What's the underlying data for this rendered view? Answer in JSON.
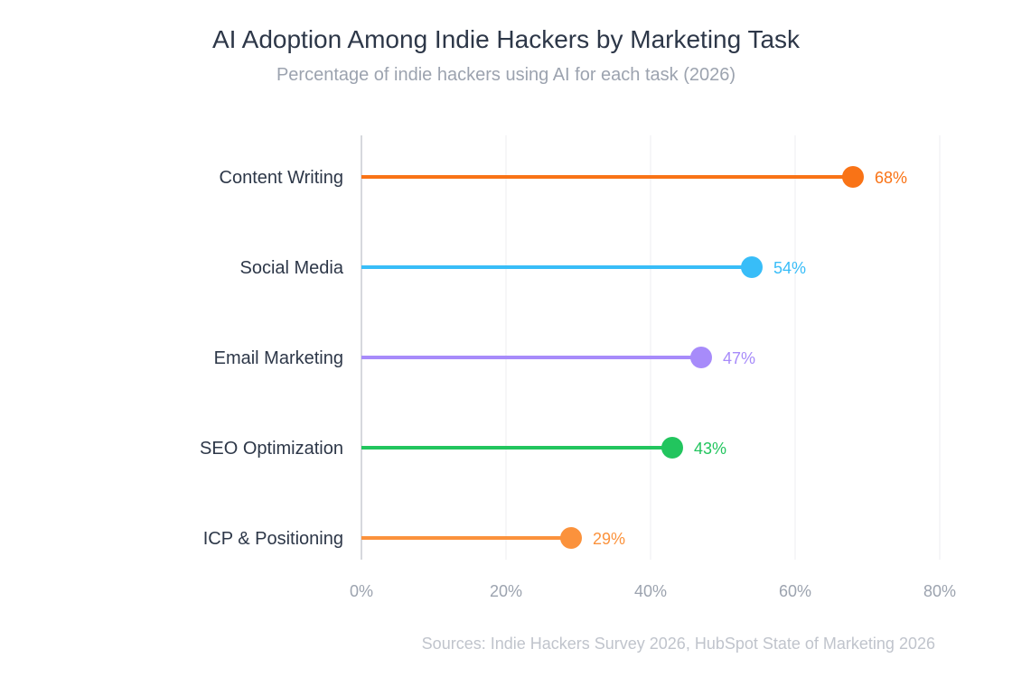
{
  "chart_data": {
    "type": "bar",
    "subtype": "lollipop",
    "orientation": "horizontal",
    "title": "AI Adoption Among Indie Hackers by Marketing Task",
    "subtitle": "Percentage of indie hackers using AI for each task (2026)",
    "categories": [
      "Content Writing",
      "Social Media",
      "Email Marketing",
      "SEO Optimization",
      "ICP & Positioning"
    ],
    "values": [
      68,
      54,
      47,
      43,
      29
    ],
    "value_labels": [
      "68%",
      "54%",
      "47%",
      "43%",
      "29%"
    ],
    "colors": [
      "#f97316",
      "#38bdf8",
      "#a78bfa",
      "#22c55e",
      "#fb923c"
    ],
    "xlim": [
      0,
      80
    ],
    "x_ticks": [
      0,
      20,
      40,
      60,
      80
    ],
    "x_tick_labels": [
      "0%",
      "20%",
      "40%",
      "60%",
      "80%"
    ],
    "grid": true,
    "legend": "none",
    "source": "Sources: Indie Hackers Survey 2026, HubSpot State of Marketing 2026"
  }
}
